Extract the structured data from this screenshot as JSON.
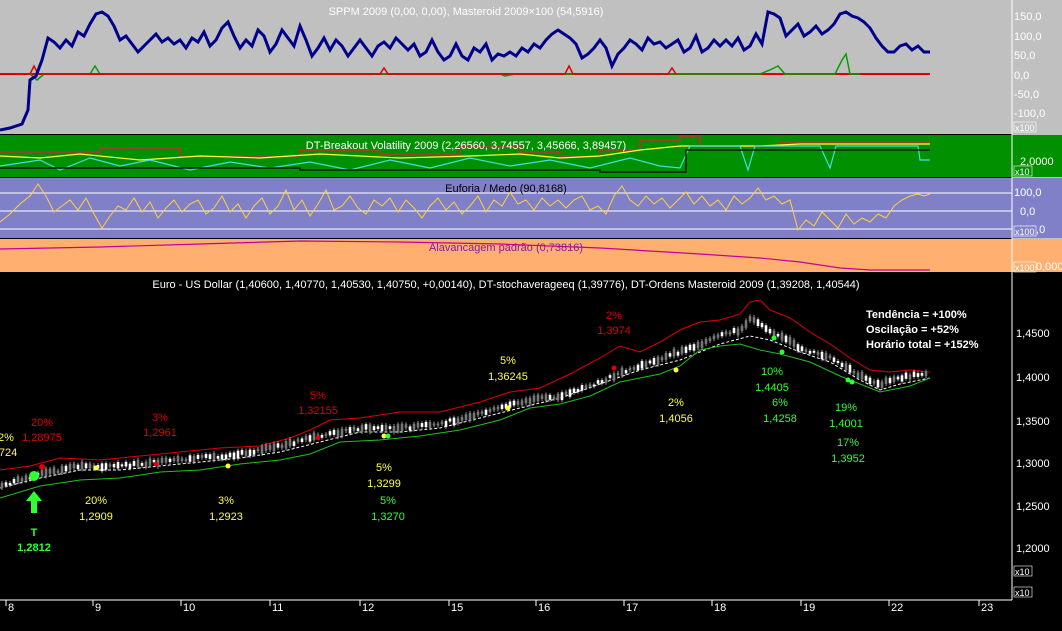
{
  "colors": {
    "panel_grey": "#c0c0c0",
    "panel_green": "#009000",
    "panel_violet": "#8080c8",
    "panel_orange": "#ffb070",
    "panel_black": "#000000",
    "navy": "#00008b",
    "red": "#e00000",
    "yellow": "#ffff40",
    "lime": "#40ff40",
    "white": "#ffffff"
  },
  "x_axis_ticks": [
    "8",
    "9",
    "10",
    "11",
    "12",
    "15",
    "16",
    "17",
    "18",
    "19",
    "22",
    "23"
  ],
  "sppm_panel": {
    "title": "SPPM 2009 (0,00, 0,00), Masteroid 2009×100 (54,5916)",
    "ticks": [
      "150,0",
      "100,0",
      "50,0",
      "0,0",
      "-50,0",
      "-100,0"
    ],
    "multiplier": "x100"
  },
  "breakout_panel": {
    "title": "DT-Breakout Volatility 2009 (2,26560, 3,74557, 3,45666, 3,89457)",
    "ticks": [
      "2,0000"
    ],
    "multiplier": "x10"
  },
  "euforia_panel": {
    "title": "Euforia / Medo (90,8168)",
    "ticks": [
      "100,0",
      "0,0",
      "-100,0"
    ],
    "multiplier": "x100"
  },
  "alavancagem_panel": {
    "title": "Alavancagem padrão (0,73816)",
    "ticks": [
      "0,000"
    ],
    "multiplier": "x100"
  },
  "price_panel": {
    "title": "Euro - US Dollar (1,40600, 1,40770, 1,40530, 1,40750, +0,00140), DT-stochaverageeq (1,39776), DT-Ordens Masteroid 2009 (1,39208, 1,40544)",
    "ticks": [
      "1,4500",
      "1,4000",
      "1,3500",
      "1,3000",
      "1,2500",
      "1,2000"
    ],
    "multiplier": "x10",
    "stats": [
      "Tendência = +100%",
      "Oscilação = +52%",
      "Horário total = +152%"
    ],
    "marker_letter": "T",
    "marker_price": "1,2812",
    "annotations": [
      {
        "pct": "2%",
        "price": "724",
        "color": "yellow"
      },
      {
        "pct": "20%",
        "price": "1,28975",
        "color": "red"
      },
      {
        "pct": "3%",
        "price": "1,2961",
        "color": "red"
      },
      {
        "pct": "5%",
        "price": "1,32155",
        "color": "red"
      },
      {
        "pct": "5%",
        "price": "1,36245",
        "color": "yellow"
      },
      {
        "pct": "2%",
        "price": "1,3974",
        "color": "red"
      },
      {
        "pct": "20%",
        "price": "1,2909",
        "color": "yellow"
      },
      {
        "pct": "3%",
        "price": "1,2923",
        "color": "yellow"
      },
      {
        "pct": "5%",
        "price": "1,3299",
        "color": "yellow"
      },
      {
        "pct": "5%",
        "price": "1,3270",
        "color": "lime"
      },
      {
        "pct": "2%",
        "price": "1,4056",
        "color": "yellow"
      },
      {
        "pct": "10%",
        "price": "1,4405",
        "color": "lime"
      },
      {
        "pct": "6%",
        "price": "1,4258",
        "color": "lime"
      },
      {
        "pct": "19%",
        "price": "1,4001",
        "color": "lime"
      },
      {
        "pct": "17%",
        "price": "1,3952",
        "color": "lime"
      }
    ]
  },
  "chart_data": {
    "type": "line",
    "title": "Euro - US Dollar (1,40600, 1,40770, 1,40530, 1,40750, +0,00140), DT-stochaverageeq (1,39776), DT-Ordens Masteroid 2009 (1,39208, 1,40544)",
    "x": [
      "8",
      "9",
      "10",
      "11",
      "12",
      "15",
      "16",
      "17",
      "18",
      "19",
      "22"
    ],
    "ylim": [
      1.18,
      1.5
    ],
    "series": [
      {
        "name": "Euro - US Dollar",
        "values": [
          1.274,
          1.288,
          1.298,
          1.318,
          1.33,
          1.347,
          1.372,
          1.418,
          1.448,
          1.41,
          1.407
        ]
      },
      {
        "name": "DT-stochaverageeq",
        "values": [
          1.268,
          1.283,
          1.292,
          1.309,
          1.325,
          1.34,
          1.36,
          1.405,
          1.44,
          1.42,
          1.398
        ]
      }
    ],
    "sppm": {
      "name": "Masteroid 2009×100",
      "ylim": [
        -150,
        180
      ],
      "values": [
        -80,
        120,
        110,
        100,
        140,
        90,
        110,
        100,
        140,
        120,
        55
      ]
    }
  }
}
